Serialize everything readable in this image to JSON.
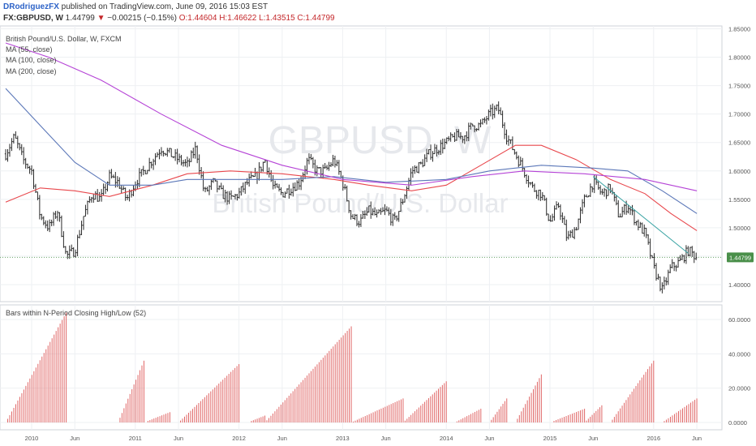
{
  "header": {
    "author": "DRodriguezFX",
    "published": "published on TradingView.com, June 09, 2016 15:03 EST",
    "symbol": "FX:GBPUSD, W",
    "last": "1.44799",
    "change_arrow": "▼",
    "change": "−0.00215 (−0.15%)",
    "o": "O:1.44604",
    "h": "H:1.46622",
    "l": "L:1.43515",
    "c": "C:1.44799"
  },
  "legend": {
    "instrument": "British Pound/U.S. Dollar, W, FXCM",
    "ma55": "MA (55, close)",
    "ma100": "MA (100, close)",
    "ma200": "MA (200, close)",
    "indicator": "Bars within N-Period Closing High/Low (52)"
  },
  "watermark": {
    "symbol": "GBPUSD, W",
    "name": "British Pound/U.S. Dollar"
  },
  "price_tag": "1.44799",
  "colors": {
    "up": "#2a2a2a",
    "down": "#2a2a2a",
    "ma55": "#e8474c",
    "ma100": "#5b77b8",
    "ma200": "#b543d6",
    "trendline": "#39a3a3",
    "osc": "#e06666",
    "price_tag": "#4a8f4a"
  },
  "chart_data": [
    {
      "type": "ohlc",
      "title": "British Pound/U.S. Dollar, W, FXCM",
      "x_ticks": [
        "2010",
        "Jun",
        "2011",
        "Jun",
        "2012",
        "Jun",
        "2013",
        "Jun",
        "2014",
        "Jun",
        "2015",
        "Jun",
        "2016",
        "Jun"
      ],
      "y_ticks": [
        "1.40000",
        "1.45000",
        "1.50000",
        "1.55000",
        "1.60000",
        "1.65000",
        "1.70000",
        "1.75000",
        "1.80000",
        "1.85000"
      ],
      "ylim": [
        1.37,
        1.855
      ],
      "last_price": 1.44799,
      "price_path": [
        {
          "x": "2009-10",
          "y": 1.63
        },
        {
          "x": "2009-11",
          "y": 1.66
        },
        {
          "x": "2009-12",
          "y": 1.62
        },
        {
          "x": "2010-01",
          "y": 1.6
        },
        {
          "x": "2010-02",
          "y": 1.52
        },
        {
          "x": "2010-03",
          "y": 1.5
        },
        {
          "x": "2010-04",
          "y": 1.53
        },
        {
          "x": "2010-05",
          "y": 1.45
        },
        {
          "x": "2010-06",
          "y": 1.46
        },
        {
          "x": "2010-07",
          "y": 1.52
        },
        {
          "x": "2010-08",
          "y": 1.56
        },
        {
          "x": "2010-09",
          "y": 1.55
        },
        {
          "x": "2010-10",
          "y": 1.59
        },
        {
          "x": "2010-11",
          "y": 1.58
        },
        {
          "x": "2010-12",
          "y": 1.55
        },
        {
          "x": "2011-01",
          "y": 1.58
        },
        {
          "x": "2011-02",
          "y": 1.6
        },
        {
          "x": "2011-03",
          "y": 1.62
        },
        {
          "x": "2011-04",
          "y": 1.64
        },
        {
          "x": "2011-05",
          "y": 1.63
        },
        {
          "x": "2011-06",
          "y": 1.62
        },
        {
          "x": "2011-07",
          "y": 1.61
        },
        {
          "x": "2011-08",
          "y": 1.64
        },
        {
          "x": "2011-09",
          "y": 1.56
        },
        {
          "x": "2011-10",
          "y": 1.58
        },
        {
          "x": "2011-11",
          "y": 1.56
        },
        {
          "x": "2011-12",
          "y": 1.55
        },
        {
          "x": "2012-01",
          "y": 1.56
        },
        {
          "x": "2012-02",
          "y": 1.58
        },
        {
          "x": "2012-03",
          "y": 1.59
        },
        {
          "x": "2012-04",
          "y": 1.62
        },
        {
          "x": "2012-05",
          "y": 1.57
        },
        {
          "x": "2012-06",
          "y": 1.56
        },
        {
          "x": "2012-07",
          "y": 1.57
        },
        {
          "x": "2012-08",
          "y": 1.58
        },
        {
          "x": "2012-09",
          "y": 1.62
        },
        {
          "x": "2012-10",
          "y": 1.6
        },
        {
          "x": "2012-11",
          "y": 1.6
        },
        {
          "x": "2012-12",
          "y": 1.62
        },
        {
          "x": "2013-01",
          "y": 1.58
        },
        {
          "x": "2013-02",
          "y": 1.52
        },
        {
          "x": "2013-03",
          "y": 1.51
        },
        {
          "x": "2013-04",
          "y": 1.53
        },
        {
          "x": "2013-05",
          "y": 1.52
        },
        {
          "x": "2013-06",
          "y": 1.53
        },
        {
          "x": "2013-07",
          "y": 1.51
        },
        {
          "x": "2013-08",
          "y": 1.55
        },
        {
          "x": "2013-09",
          "y": 1.6
        },
        {
          "x": "2013-10",
          "y": 1.61
        },
        {
          "x": "2013-11",
          "y": 1.63
        },
        {
          "x": "2013-12",
          "y": 1.64
        },
        {
          "x": "2014-01",
          "y": 1.65
        },
        {
          "x": "2014-02",
          "y": 1.66
        },
        {
          "x": "2014-03",
          "y": 1.66
        },
        {
          "x": "2014-04",
          "y": 1.68
        },
        {
          "x": "2014-05",
          "y": 1.68
        },
        {
          "x": "2014-06",
          "y": 1.7
        },
        {
          "x": "2014-07",
          "y": 1.71
        },
        {
          "x": "2014-08",
          "y": 1.66
        },
        {
          "x": "2014-09",
          "y": 1.63
        },
        {
          "x": "2014-10",
          "y": 1.6
        },
        {
          "x": "2014-11",
          "y": 1.57
        },
        {
          "x": "2014-12",
          "y": 1.56
        },
        {
          "x": "2015-01",
          "y": 1.51
        },
        {
          "x": "2015-02",
          "y": 1.54
        },
        {
          "x": "2015-03",
          "y": 1.48
        },
        {
          "x": "2015-04",
          "y": 1.5
        },
        {
          "x": "2015-05",
          "y": 1.55
        },
        {
          "x": "2015-06",
          "y": 1.58
        },
        {
          "x": "2015-07",
          "y": 1.56
        },
        {
          "x": "2015-08",
          "y": 1.57
        },
        {
          "x": "2015-09",
          "y": 1.52
        },
        {
          "x": "2015-10",
          "y": 1.54
        },
        {
          "x": "2015-11",
          "y": 1.51
        },
        {
          "x": "2015-12",
          "y": 1.49
        },
        {
          "x": "2016-01",
          "y": 1.43
        },
        {
          "x": "2016-02",
          "y": 1.39
        },
        {
          "x": "2016-03",
          "y": 1.43
        },
        {
          "x": "2016-04",
          "y": 1.44
        },
        {
          "x": "2016-05",
          "y": 1.46
        },
        {
          "x": "2016-06",
          "y": 1.448
        }
      ],
      "series": [
        {
          "name": "MA (55, close)",
          "values": [
            {
              "x": "2009-10",
              "y": 1.545
            },
            {
              "x": "2010-02",
              "y": 1.57
            },
            {
              "x": "2010-06",
              "y": 1.565
            },
            {
              "x": "2010-10",
              "y": 1.555
            },
            {
              "x": "2011-03",
              "y": 1.575
            },
            {
              "x": "2011-07",
              "y": 1.595
            },
            {
              "x": "2011-12",
              "y": 1.6
            },
            {
              "x": "2012-06",
              "y": 1.595
            },
            {
              "x": "2012-12",
              "y": 1.585
            },
            {
              "x": "2013-04",
              "y": 1.575
            },
            {
              "x": "2013-09",
              "y": 1.565
            },
            {
              "x": "2014-01",
              "y": 1.575
            },
            {
              "x": "2014-05",
              "y": 1.61
            },
            {
              "x": "2014-09",
              "y": 1.645
            },
            {
              "x": "2014-12",
              "y": 1.645
            },
            {
              "x": "2015-04",
              "y": 1.62
            },
            {
              "x": "2015-08",
              "y": 1.585
            },
            {
              "x": "2015-12",
              "y": 1.56
            },
            {
              "x": "2016-03",
              "y": 1.525
            },
            {
              "x": "2016-06",
              "y": 1.495
            }
          ]
        },
        {
          "name": "MA (100, close)",
          "values": [
            {
              "x": "2009-10",
              "y": 1.745
            },
            {
              "x": "2010-02",
              "y": 1.68
            },
            {
              "x": "2010-06",
              "y": 1.615
            },
            {
              "x": "2010-10",
              "y": 1.575
            },
            {
              "x": "2011-03",
              "y": 1.575
            },
            {
              "x": "2011-07",
              "y": 1.585
            },
            {
              "x": "2011-12",
              "y": 1.585
            },
            {
              "x": "2012-06",
              "y": 1.585
            },
            {
              "x": "2012-12",
              "y": 1.59
            },
            {
              "x": "2013-06",
              "y": 1.58
            },
            {
              "x": "2014-01",
              "y": 1.585
            },
            {
              "x": "2014-06",
              "y": 1.6
            },
            {
              "x": "2014-12",
              "y": 1.61
            },
            {
              "x": "2015-06",
              "y": 1.605
            },
            {
              "x": "2015-10",
              "y": 1.6
            },
            {
              "x": "2016-02",
              "y": 1.565
            },
            {
              "x": "2016-06",
              "y": 1.525
            }
          ]
        },
        {
          "name": "MA (200, close)",
          "values": [
            {
              "x": "2009-10",
              "y": 1.825
            },
            {
              "x": "2010-03",
              "y": 1.8
            },
            {
              "x": "2010-09",
              "y": 1.76
            },
            {
              "x": "2011-04",
              "y": 1.7
            },
            {
              "x": "2011-11",
              "y": 1.645
            },
            {
              "x": "2012-06",
              "y": 1.61
            },
            {
              "x": "2013-01",
              "y": 1.585
            },
            {
              "x": "2013-09",
              "y": 1.575
            },
            {
              "x": "2014-04",
              "y": 1.59
            },
            {
              "x": "2014-10",
              "y": 1.6
            },
            {
              "x": "2015-05",
              "y": 1.595
            },
            {
              "x": "2015-12",
              "y": 1.585
            },
            {
              "x": "2016-06",
              "y": 1.565
            }
          ]
        }
      ],
      "trendline": [
        {
          "x": "2015-06",
          "y": 1.59
        },
        {
          "x": "2016-05",
          "y": 1.455
        }
      ]
    },
    {
      "type": "bar",
      "title": "Bars within N-Period Closing High/Low (52)",
      "y_ticks": [
        "0.0000",
        "20.0000",
        "40.0000",
        "60.0000"
      ],
      "ylim": [
        0,
        68
      ],
      "cycles": [
        {
          "start": "2009-10",
          "end": "2010-05",
          "max": 64
        },
        {
          "start": "2010-06",
          "end": "2010-11",
          "max": 0
        },
        {
          "start": "2010-11",
          "end": "2011-02",
          "max": 36
        },
        {
          "start": "2011-02",
          "end": "2011-05",
          "max": 6
        },
        {
          "start": "2011-06",
          "end": "2012-01",
          "max": 34
        },
        {
          "start": "2012-02",
          "end": "2012-04",
          "max": 4
        },
        {
          "start": "2012-04",
          "end": "2013-02",
          "max": 56
        },
        {
          "start": "2013-02",
          "end": "2013-08",
          "max": 14
        },
        {
          "start": "2013-08",
          "end": "2014-01",
          "max": 24
        },
        {
          "start": "2014-02",
          "end": "2014-05",
          "max": 8
        },
        {
          "start": "2014-06",
          "end": "2014-08",
          "max": 14
        },
        {
          "start": "2014-09",
          "end": "2014-12",
          "max": 28
        },
        {
          "start": "2015-01",
          "end": "2015-05",
          "max": 8
        },
        {
          "start": "2015-05",
          "end": "2015-07",
          "max": 10
        },
        {
          "start": "2015-08",
          "end": "2016-01",
          "max": 36
        },
        {
          "start": "2016-02",
          "end": "2016-06",
          "max": 14
        }
      ]
    }
  ]
}
